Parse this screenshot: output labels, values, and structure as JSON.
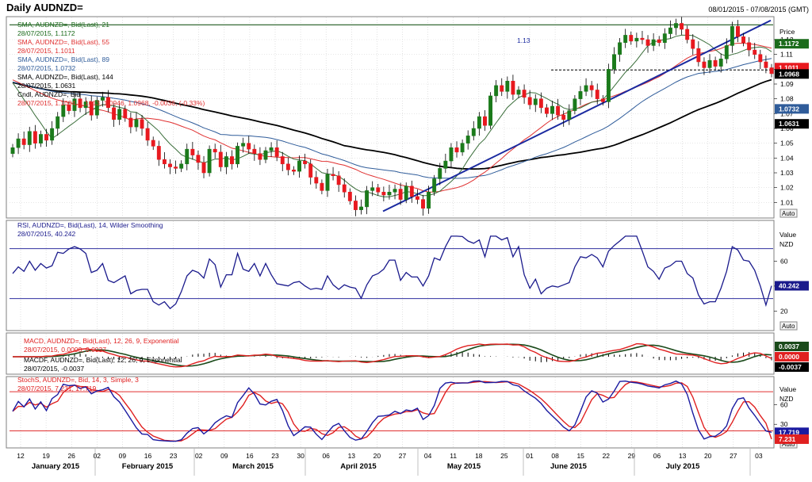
{
  "header": {
    "title": "Daily AUDNZD=",
    "date_range": "08/01/2015 - 07/08/2015 (GMT)"
  },
  "colors": {
    "candle_up": "#1b7a1b",
    "candle_down": "#e8191f",
    "sma21": "#3a6e3a",
    "sma55": "#e03030",
    "sma89": "#2f5c9a",
    "sma144": "#000000",
    "trendline": "#1a2aa0",
    "hline": "#1e5a1e",
    "rsi": "#1a1a8c",
    "macd": "#e02020",
    "macd_signal": "#1a4a1a",
    "stoch_k": "#1a1aa0",
    "stoch_d": "#e02020",
    "ref_line_blue": "#3030a0",
    "ref_line_red": "#e03030"
  },
  "price_panel": {
    "legend": [
      {
        "text": "SMA, AUDNZD=, Bid(Last),  21",
        "color": "#1b6b1b"
      },
      {
        "text": "28/07/2015, 1.1172",
        "color": "#1b6b1b"
      },
      {
        "text": "SMA, AUDNZD=, Bid(Last),  55",
        "color": "#e03030"
      },
      {
        "text": "28/07/2015, 1.1011",
        "color": "#e03030"
      },
      {
        "text": "SMA, AUDNZD=, Bid(Last),  89",
        "color": "#2f5c9a"
      },
      {
        "text": "28/07/2015, 1.0732",
        "color": "#2f5c9a"
      },
      {
        "text": "SMA, AUDNZD=, Bid(Last),  144",
        "color": "#000000"
      },
      {
        "text": "28/07/2015, 1.0631",
        "color": "#000000"
      },
      {
        "text": "Cndl, AUDNZD=, Bid",
        "color": "#000000"
      },
      {
        "text": "28/07/2015, 1.1004, 1.1013, 1.0946, 1.0968, -0.0036, (-0.33%)",
        "color": "#e03030"
      }
    ],
    "axis_title": "Price",
    "axis_unit": "NZD",
    "ticks": [
      "1.12",
      "1.11",
      "1.10",
      "1.09",
      "1.08",
      "1.07",
      "1.06",
      "1.05",
      "1.04",
      "1.03",
      "1.02",
      "1.01"
    ],
    "hline_label": "1.13",
    "tags": [
      {
        "text": "1.1172",
        "value": 1.1172,
        "bg": "#1b6b1b"
      },
      {
        "text": "1.1011",
        "value": 1.1011,
        "bg": "#e8191f"
      },
      {
        "text": "1.0968",
        "value": 1.0968,
        "bg": "#000000"
      },
      {
        "text": "1.0732",
        "value": 1.0732,
        "bg": "#2f5c9a"
      },
      {
        "text": "1.0631",
        "value": 1.0631,
        "bg": "#000000"
      }
    ],
    "auto_label": "Auto"
  },
  "rsi_panel": {
    "legend": [
      {
        "text": "RSI, AUDNZD=, Bid(Last),  14, Wilder Smoothing",
        "color": "#1a1a8c"
      },
      {
        "text": "28/07/2015, 40.242",
        "color": "#1a1a8c"
      }
    ],
    "axis_title": "Value",
    "axis_unit": "NZD",
    "ticks": [
      "60",
      "40",
      "20"
    ],
    "tag": {
      "text": "40.242",
      "value": 40.242,
      "bg": "#1a1a8c"
    },
    "auto_label": "Auto"
  },
  "macd_panel": {
    "legend": [
      {
        "text": "MACD, AUDNZD=, Bid(Last),  12, 26, 9, Exponential",
        "color": "#e02020"
      },
      {
        "text": "28/07/2015, 0.0000, 0.0037",
        "color": "#e02020"
      },
      {
        "text": "MACDF, AUDNZD=, Bid(Last),  12, 26, 9, Exponential",
        "color": "#000000"
      },
      {
        "text": "28/07/2015, -0.0037",
        "color": "#000000"
      }
    ],
    "tags": [
      {
        "text": "0.0037",
        "bg": "#1a4a1a"
      },
      {
        "text": "0.0000",
        "bg": "#e02020"
      },
      {
        "text": "-0.0037",
        "bg": "#000000"
      }
    ]
  },
  "stoch_panel": {
    "legend": [
      {
        "text": "StochS, AUDNZD=, Bid,  14, 3, Simple, 3",
        "color": "#e02020"
      },
      {
        "text": "28/07/2015, 7.231, 17.719",
        "color": "#e02020"
      }
    ],
    "axis_title": "Value",
    "axis_unit": "NZD",
    "ticks": [
      "60",
      "30"
    ],
    "tags": [
      {
        "text": "17.719",
        "value": 17.719,
        "bg": "#1a1aa0"
      },
      {
        "text": "7.231",
        "value": 7.231,
        "bg": "#e02020"
      }
    ],
    "auto_label": "Auto"
  },
  "x_axis": {
    "days": [
      "12",
      "19",
      "26",
      "02",
      "09",
      "16",
      "23",
      "02",
      "09",
      "16",
      "23",
      "30",
      "06",
      "13",
      "20",
      "27",
      "04",
      "11",
      "18",
      "25",
      "01",
      "08",
      "15",
      "22",
      "29",
      "06",
      "13",
      "20",
      "27",
      "03"
    ],
    "months": [
      "January 2015",
      "February 2015",
      "March 2015",
      "April 2015",
      "May 2015",
      "June 2015",
      "July 2015"
    ]
  },
  "chart_data": {
    "type": "candlestick",
    "symbol": "AUDNZD=",
    "period": "Daily",
    "ylim": [
      1.0,
      1.135
    ],
    "candles_close": [
      1.047,
      1.053,
      1.049,
      1.058,
      1.05,
      1.056,
      1.052,
      1.06,
      1.068,
      1.076,
      1.072,
      1.08,
      1.074,
      1.078,
      1.069,
      1.079,
      1.081,
      1.074,
      1.066,
      1.073,
      1.067,
      1.061,
      1.066,
      1.06,
      1.052,
      1.048,
      1.039,
      1.036,
      1.034,
      1.033,
      1.036,
      1.046,
      1.042,
      1.037,
      1.03,
      1.046,
      1.044,
      1.034,
      1.041,
      1.036,
      1.048,
      1.05,
      1.046,
      1.043,
      1.039,
      1.045,
      1.047,
      1.041,
      1.036,
      1.032,
      1.031,
      1.038,
      1.036,
      1.027,
      1.023,
      1.018,
      1.029,
      1.028,
      1.022,
      1.017,
      1.011,
      1.005,
      1.007,
      1.018,
      1.02,
      1.017,
      1.015,
      1.017,
      1.019,
      1.012,
      1.021,
      1.014,
      1.012,
      1.006,
      1.017,
      1.026,
      1.033,
      1.038,
      1.047,
      1.044,
      1.05,
      1.055,
      1.06,
      1.068,
      1.062,
      1.082,
      1.089,
      1.085,
      1.092,
      1.083,
      1.086,
      1.081,
      1.076,
      1.08,
      1.074,
      1.07,
      1.075,
      1.069,
      1.066,
      1.072,
      1.08,
      1.085,
      1.089,
      1.086,
      1.08,
      1.078,
      1.1,
      1.11,
      1.118,
      1.123,
      1.119,
      1.121,
      1.12,
      1.116,
      1.12,
      1.118,
      1.124,
      1.128,
      1.131,
      1.127,
      1.12,
      1.114,
      1.105,
      1.101,
      1.106,
      1.102,
      1.107,
      1.116,
      1.129,
      1.122,
      1.118,
      1.113,
      1.11,
      1.105,
      1.101,
      1.097
    ],
    "series": [
      {
        "name": "SMA 21",
        "last": 1.1172
      },
      {
        "name": "SMA 55",
        "last": 1.1011
      },
      {
        "name": "SMA 89",
        "last": 1.0732
      },
      {
        "name": "SMA 144",
        "last": 1.0631
      }
    ],
    "last_candle": {
      "date": "28/07/2015",
      "open": 1.1004,
      "high": 1.1013,
      "low": 1.0946,
      "close": 1.0968
    },
    "horizontal_line": 1.13,
    "support_line": 1.0995,
    "rsi": {
      "last": 40.242,
      "levels": [
        70,
        30
      ]
    },
    "macd": {
      "macd": 0.0,
      "signal": 0.0037,
      "hist": -0.0037
    },
    "stochastic": {
      "k": 17.719,
      "d": 7.231,
      "levels": [
        80,
        20
      ]
    }
  }
}
